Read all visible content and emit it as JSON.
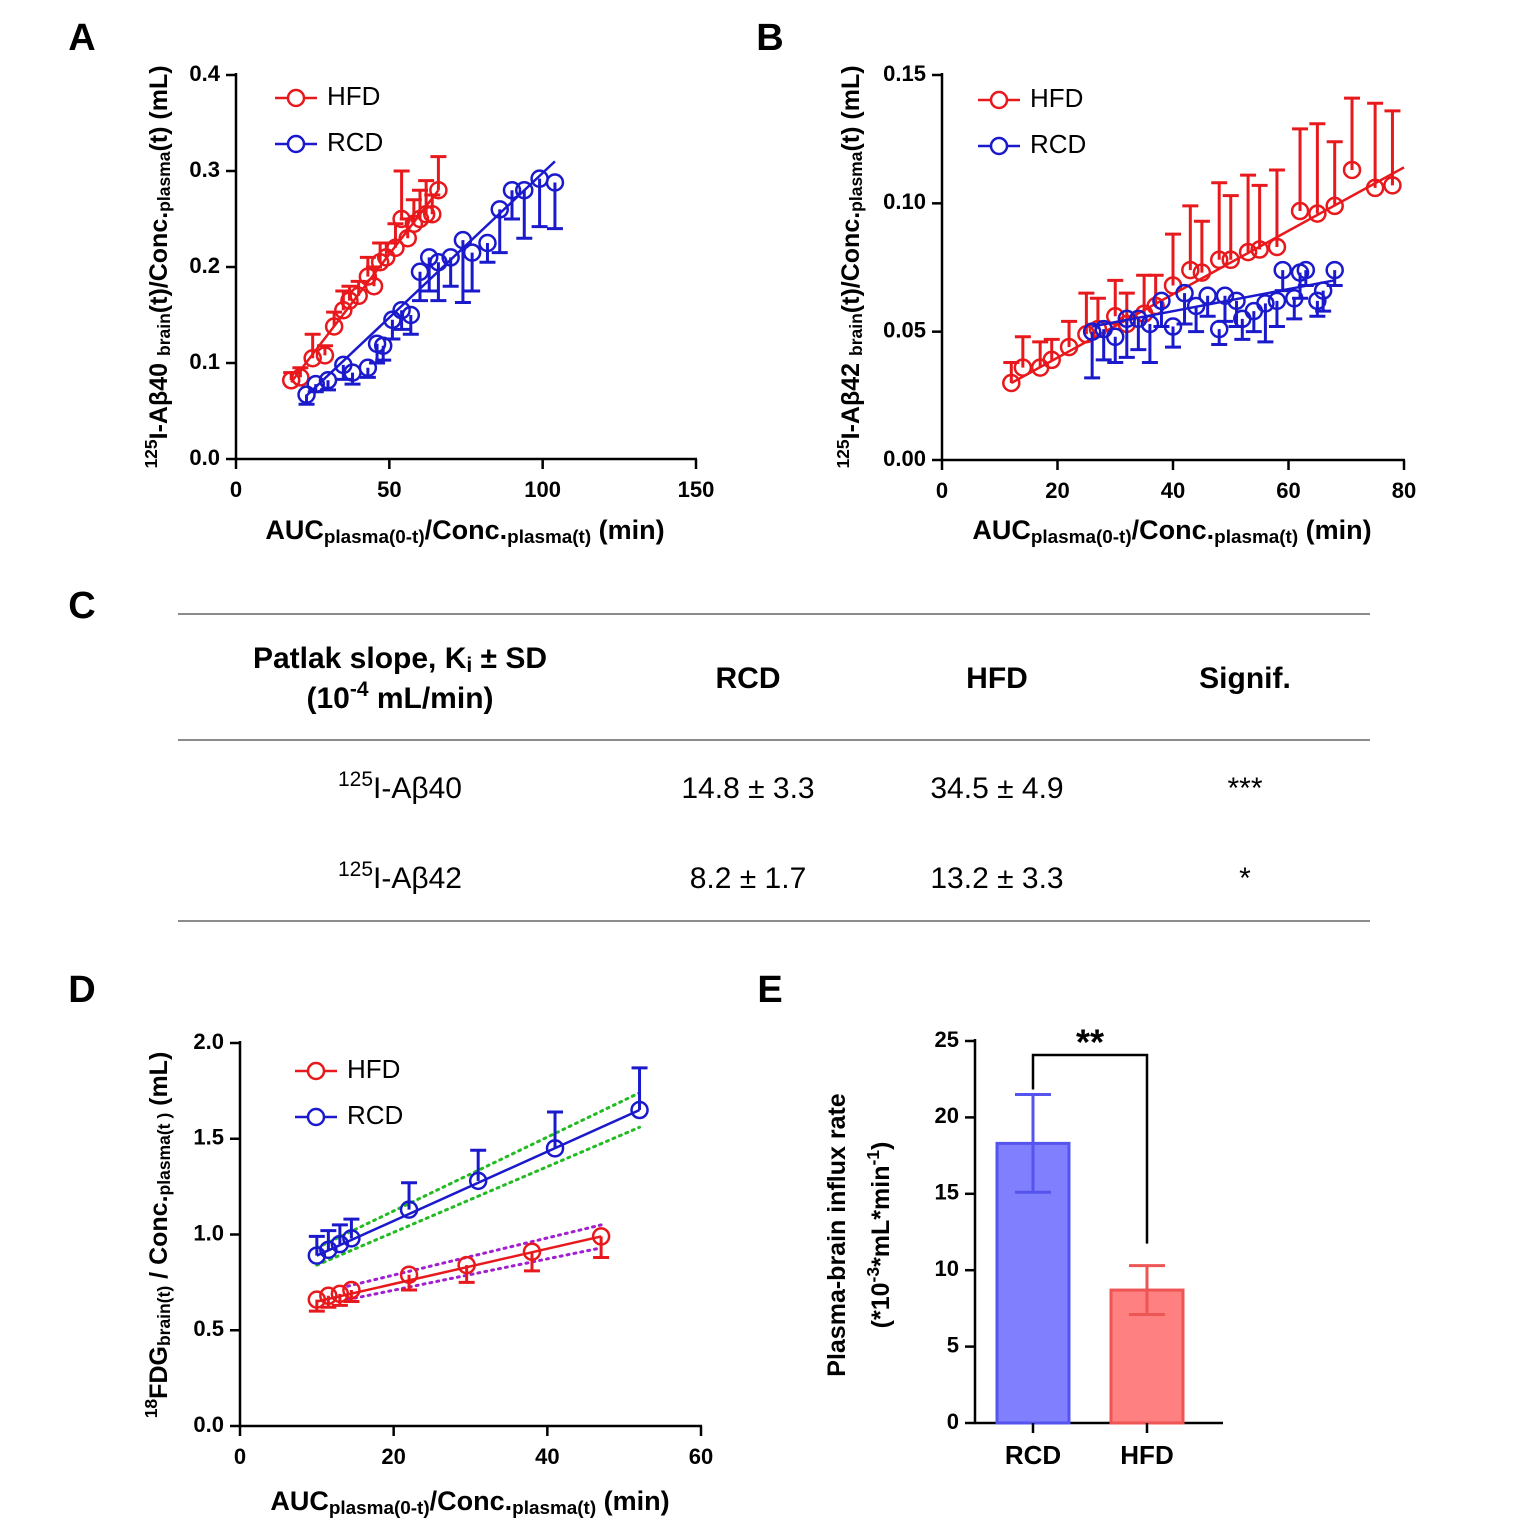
{
  "chart_data": [
    {
      "type": "scatter",
      "panel": "A",
      "xlabel": [
        {
          "text": "AUC",
          "pos": "base"
        },
        {
          "text": "plasma(0-t)",
          "pos": "sub"
        },
        {
          "text": "/Conc.",
          "pos": "base"
        },
        {
          "text": "plasma(t)",
          "pos": "sub"
        },
        {
          "text": " (min)",
          "pos": "base"
        }
      ],
      "ylabel": [
        {
          "text": "125",
          "pos": "sup"
        },
        {
          "text": "I-Aβ40 ",
          "pos": "base"
        },
        {
          "text": "brain",
          "pos": "sub"
        },
        {
          "text": "(t)/Conc.",
          "pos": "base"
        },
        {
          "text": "plasma",
          "pos": "sub"
        },
        {
          "text": "(t) (mL)",
          "pos": "base"
        }
      ],
      "xlim": [
        0,
        150
      ],
      "xticks": [
        0,
        50,
        100,
        150
      ],
      "ylim": [
        0,
        0.4
      ],
      "yticks": [
        {
          "value": 0,
          "label": "0.0"
        },
        0.1,
        0.2,
        0.3,
        0.4
      ],
      "series": [
        {
          "name": "HFD",
          "color": "#e8191c",
          "error_dir": "up",
          "x": [
            18,
            21,
            25,
            29,
            32,
            35,
            37,
            40,
            43,
            45,
            47,
            49,
            52,
            54,
            56,
            58,
            60,
            62,
            64,
            66
          ],
          "values": [
            0.082,
            0.085,
            0.105,
            0.108,
            0.138,
            0.155,
            0.165,
            0.17,
            0.19,
            0.18,
            0.205,
            0.21,
            0.22,
            0.25,
            0.23,
            0.245,
            0.25,
            0.255,
            0.255,
            0.28
          ],
          "errors": [
            0.008,
            0.01,
            0.025,
            0.01,
            0.015,
            0.02,
            0.015,
            0.015,
            0.02,
            0.02,
            0.02,
            0.015,
            0.025,
            0.05,
            0.02,
            0.025,
            0.03,
            0.035,
            0.02,
            0.035
          ],
          "fit_x": [
            18,
            66
          ],
          "fit_y": [
            0.08,
            0.28
          ]
        },
        {
          "name": "RCD",
          "color": "#1a1acc",
          "error_dir": "down",
          "x": [
            23,
            26,
            30,
            35,
            38,
            43,
            46,
            48,
            51,
            54,
            57,
            60,
            63,
            66,
            70,
            74,
            77,
            82,
            86,
            90,
            94,
            99,
            104
          ],
          "values": [
            0.067,
            0.078,
            0.082,
            0.098,
            0.09,
            0.095,
            0.12,
            0.118,
            0.145,
            0.155,
            0.15,
            0.195,
            0.21,
            0.205,
            0.21,
            0.228,
            0.215,
            0.225,
            0.26,
            0.28,
            0.28,
            0.292,
            0.288
          ],
          "errors": [
            0.01,
            0.008,
            0.01,
            0.015,
            0.012,
            0.01,
            0.02,
            0.015,
            0.02,
            0.02,
            0.02,
            0.03,
            0.035,
            0.04,
            0.03,
            0.065,
            0.04,
            0.02,
            0.045,
            0.03,
            0.05,
            0.05,
            0.048
          ],
          "fit_x": [
            23,
            104
          ],
          "fit_y": [
            0.066,
            0.31
          ]
        }
      ]
    },
    {
      "type": "scatter",
      "panel": "B",
      "xlabel": [
        {
          "text": "AUC",
          "pos": "base"
        },
        {
          "text": "plasma(0-t)",
          "pos": "sub"
        },
        {
          "text": "/Conc.",
          "pos": "base"
        },
        {
          "text": "plasma(t)",
          "pos": "sub"
        },
        {
          "text": " (min)",
          "pos": "base"
        }
      ],
      "ylabel": [
        {
          "text": "125",
          "pos": "sup"
        },
        {
          "text": "I-Aβ42 ",
          "pos": "base"
        },
        {
          "text": "brain",
          "pos": "sub"
        },
        {
          "text": "(t)/Conc.",
          "pos": "base"
        },
        {
          "text": "plasma",
          "pos": "sub"
        },
        {
          "text": "(t) (mL)",
          "pos": "base"
        }
      ],
      "xlim": [
        0,
        80
      ],
      "xticks": [
        0,
        20,
        40,
        60,
        80
      ],
      "ylim": [
        0,
        0.15
      ],
      "yticks": [
        {
          "value": 0,
          "label": "0.00"
        },
        0.05,
        {
          "value": 0.1,
          "label": "0.10"
        },
        0.15
      ],
      "series": [
        {
          "name": "HFD",
          "color": "#e8191c",
          "error_dir": "up",
          "x": [
            12,
            14,
            17,
            19,
            22,
            25,
            27,
            30,
            32,
            35,
            37,
            40,
            43,
            45,
            48,
            50,
            53,
            55,
            58,
            62,
            65,
            68,
            71,
            75,
            78
          ],
          "values": [
            0.03,
            0.036,
            0.036,
            0.039,
            0.044,
            0.049,
            0.051,
            0.056,
            0.053,
            0.057,
            0.06,
            0.068,
            0.074,
            0.073,
            0.078,
            0.078,
            0.081,
            0.082,
            0.083,
            0.097,
            0.096,
            0.099,
            0.113,
            0.106,
            0.107
          ],
          "errors": [
            0.008,
            0.012,
            0.01,
            0.008,
            0.01,
            0.016,
            0.012,
            0.014,
            0.012,
            0.015,
            0.012,
            0.02,
            0.025,
            0.02,
            0.03,
            0.025,
            0.03,
            0.025,
            0.03,
            0.032,
            0.035,
            0.025,
            0.028,
            0.033,
            0.029
          ],
          "fit_x": [
            12,
            80
          ],
          "fit_y": [
            0.03,
            0.114
          ]
        },
        {
          "name": "RCD",
          "color": "#1a1acc",
          "error_dir": "down",
          "x": [
            26,
            28,
            30,
            32,
            34,
            36,
            38,
            40,
            42,
            44,
            46,
            48,
            49,
            51,
            52,
            54,
            56,
            58,
            59,
            61,
            62,
            63,
            65,
            66,
            68
          ],
          "values": [
            0.05,
            0.051,
            0.048,
            0.055,
            0.055,
            0.053,
            0.062,
            0.052,
            0.065,
            0.06,
            0.064,
            0.051,
            0.064,
            0.062,
            0.055,
            0.058,
            0.061,
            0.062,
            0.074,
            0.063,
            0.073,
            0.074,
            0.062,
            0.066,
            0.074
          ],
          "errors": [
            0.018,
            0.012,
            0.01,
            0.015,
            0.012,
            0.015,
            0.01,
            0.008,
            0.012,
            0.01,
            0.008,
            0.006,
            0.01,
            0.01,
            0.008,
            0.008,
            0.015,
            0.01,
            0.008,
            0.008,
            0.01,
            0.006,
            0.006,
            0.008,
            0.006
          ],
          "fit_x": [
            26,
            68
          ],
          "fit_y": [
            0.052,
            0.07
          ]
        }
      ]
    },
    {
      "type": "scatter",
      "panel": "D",
      "xlabel": [
        {
          "text": "AUC",
          "pos": "base"
        },
        {
          "text": "plasma(0-t)",
          "pos": "sub"
        },
        {
          "text": "/Conc.",
          "pos": "base"
        },
        {
          "text": "plasma(t)",
          "pos": "sub"
        },
        {
          "text": " (min)",
          "pos": "base"
        }
      ],
      "ylabel": [
        {
          "text": "18",
          "pos": "sup"
        },
        {
          "text": "FDG",
          "pos": "base"
        },
        {
          "text": "brain(t)",
          "pos": "sub"
        },
        {
          "text": " / Conc.",
          "pos": "base"
        },
        {
          "text": "plasma(t )",
          "pos": "sub"
        },
        {
          "text": " (mL)",
          "pos": "base"
        }
      ],
      "xlim": [
        0,
        60
      ],
      "xticks": [
        0,
        20,
        40,
        60
      ],
      "ylim": [
        0,
        2
      ],
      "yticks": [
        {
          "value": 0,
          "label": "0.0"
        },
        0.5,
        {
          "value": 1,
          "label": "1.0"
        },
        1.5,
        {
          "value": 2,
          "label": "2.0"
        }
      ],
      "series": [
        {
          "name": "HFD",
          "color": "#e8191c",
          "error_dir": "down",
          "band_color": "#a020d0",
          "x": [
            10,
            11.5,
            13,
            14.5,
            22,
            29.5,
            38,
            47
          ],
          "values": [
            0.66,
            0.68,
            0.69,
            0.71,
            0.79,
            0.84,
            0.91,
            0.99
          ],
          "errors": [
            0.06,
            0.06,
            0.06,
            0.06,
            0.08,
            0.09,
            0.1,
            0.11
          ],
          "fit_x": [
            10,
            47
          ],
          "fit_y": [
            0.65,
            0.99
          ],
          "band": [
            {
              "x": [
                14,
                47
              ],
              "y": [
                0.73,
                1.05
              ]
            },
            {
              "x": [
                14,
                47
              ],
              "y": [
                0.66,
                0.93
              ]
            }
          ]
        },
        {
          "name": "RCD",
          "color": "#1a1acc",
          "error_dir": "up",
          "band_color": "#22bb22",
          "x": [
            10,
            11.5,
            13,
            14.5,
            22,
            31,
            41,
            52
          ],
          "values": [
            0.89,
            0.92,
            0.95,
            0.98,
            1.13,
            1.28,
            1.45,
            1.65
          ],
          "errors": [
            0.1,
            0.1,
            0.1,
            0.1,
            0.14,
            0.16,
            0.19,
            0.22
          ],
          "fit_x": [
            10,
            52
          ],
          "fit_y": [
            0.89,
            1.65
          ],
          "band": [
            {
              "x": [
                10,
                52
              ],
              "y": [
                0.93,
                1.74
              ]
            },
            {
              "x": [
                10,
                52
              ],
              "y": [
                0.84,
                1.56
              ]
            }
          ]
        }
      ]
    },
    {
      "type": "bar",
      "panel": "E",
      "ylabel": [
        {
          "text": "Plasma-brain influx rate",
          "pos": "base"
        }
      ],
      "ylabel2": [
        {
          "text": "(*10",
          "pos": "base"
        },
        {
          "text": "-3",
          "pos": "sup"
        },
        {
          "text": "*mL*min",
          "pos": "base"
        },
        {
          "text": "-1",
          "pos": "sup"
        },
        {
          "text": ")",
          "pos": "base"
        }
      ],
      "categories": [
        "RCD",
        "HFD"
      ],
      "values": [
        18.3,
        8.7
      ],
      "errors": [
        3.2,
        1.6
      ],
      "colors": [
        "#8080ff",
        "#ff8080"
      ],
      "edge_colors": [
        "#5555ee",
        "#ee5555"
      ],
      "ylim": [
        0,
        25
      ],
      "yticks": [
        0,
        5,
        10,
        15,
        20,
        25
      ],
      "significance": "**"
    }
  ],
  "table": {
    "panel": "C",
    "header": [
      [
        [
          {
            "text": "Patlak slope, K",
            "pos": "base"
          },
          {
            "text": "i",
            "pos": "sub"
          },
          {
            "text": " ± SD",
            "pos": "base"
          }
        ],
        [
          {
            "text": "(10",
            "pos": "base"
          },
          {
            "text": "-4",
            "pos": "sup"
          },
          {
            "text": " mL/min)",
            "pos": "base"
          }
        ]
      ],
      "RCD",
      "HFD",
      "Signif."
    ],
    "rows": [
      [
        [
          {
            "text": "125",
            "pos": "sup"
          },
          {
            "text": "I-Aβ40",
            "pos": "base"
          }
        ],
        "14.8 ± 3.3",
        "34.5 ± 4.9",
        "***"
      ],
      [
        [
          {
            "text": "125",
            "pos": "sup"
          },
          {
            "text": "I-Aβ42",
            "pos": "base"
          }
        ],
        "8.2 ± 1.7",
        "13.2 ± 3.3",
        "*"
      ]
    ]
  }
}
